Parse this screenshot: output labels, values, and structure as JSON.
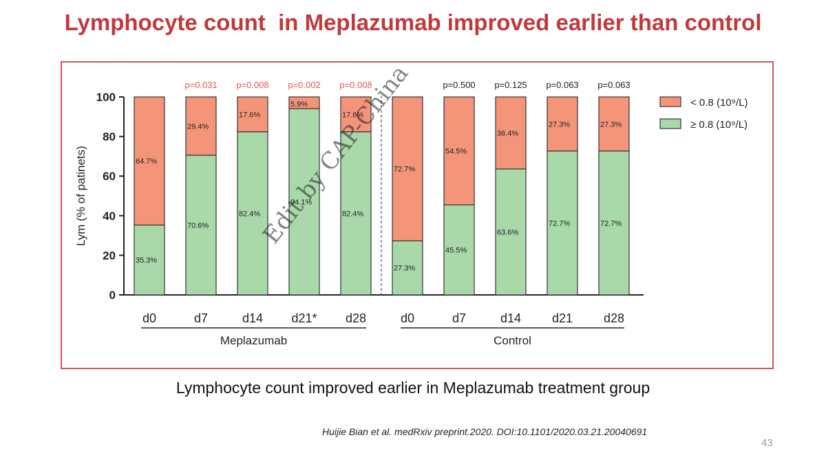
{
  "slide": {
    "title": "Lymphocyte count  in Meplazumab improved earlier than control",
    "caption": "Lymphocyte count improved earlier in Meplazumab treatment group",
    "citation": "Huijie Bian et al. medRxiv preprint.2020. DOI:10.1101/2020.03.21.20040691",
    "page_number": "43",
    "watermark": "Edit by CAP-China"
  },
  "colors": {
    "title": "#c0393b",
    "frame": "#c9565b",
    "low": "#f4957a",
    "high": "#a9d9a9",
    "pvalue_significant": "#e05a4a",
    "pvalue_ns": "#222222"
  },
  "chart_data": {
    "type": "bar",
    "stacked": true,
    "ylabel": "Lym (% of patinets)",
    "ylim": [
      0,
      100
    ],
    "yticks": [
      "0",
      "20",
      "40",
      "60",
      "80",
      "100"
    ],
    "categories": [
      "d0",
      "d7",
      "d14",
      "d21*",
      "d28",
      "d0",
      "d7",
      "d14",
      "d21",
      "d28"
    ],
    "groups": [
      {
        "name": "Meplazumab",
        "categories": [
          "d0",
          "d7",
          "d14",
          "d21*",
          "d28"
        ]
      },
      {
        "name": "Control",
        "categories": [
          "d0",
          "d7",
          "d14",
          "d21",
          "d28"
        ]
      }
    ],
    "p_values": [
      "",
      "p=0.031",
      "p=0.008",
      "p=0.002",
      "p=0.008",
      "",
      "p=0.500",
      "p=0.125",
      "p=0.063",
      "p=0.063"
    ],
    "series": [
      {
        "name": "< 0.8 (10⁹/L)",
        "color": "#f4957a",
        "values": [
          64.7,
          29.4,
          17.6,
          5.9,
          17.6,
          72.7,
          54.5,
          36.4,
          27.3,
          27.3
        ],
        "labels": [
          "64.7%",
          "29.4%",
          "17.6%",
          "5.9%",
          "17.6%",
          "72.7%",
          "54.5%",
          "36.4%",
          "27.3%",
          "27.3%"
        ]
      },
      {
        "name": "≥  0.8 (10⁹/L)",
        "color": "#a9d9a9",
        "values": [
          35.3,
          70.6,
          82.4,
          94.1,
          82.4,
          27.3,
          45.5,
          63.6,
          72.7,
          72.7
        ],
        "labels": [
          "35.3%",
          "70.6%",
          "82.4%",
          "94.1%",
          "82.4%",
          "27.3%",
          "45.5%",
          "63.6%",
          "72.7%",
          "72.7%"
        ]
      }
    ],
    "legend": "top-right"
  }
}
